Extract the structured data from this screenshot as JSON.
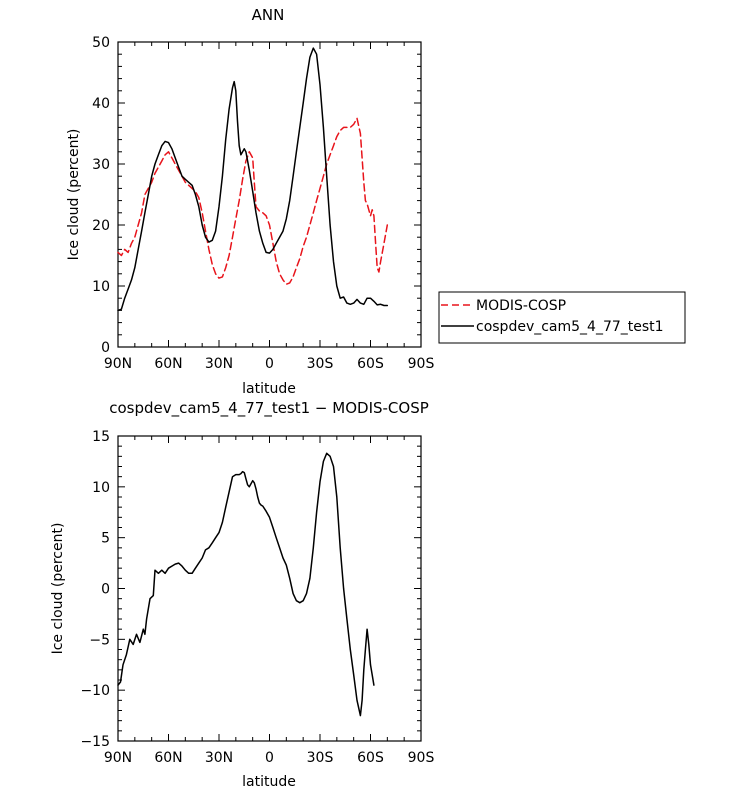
{
  "chart_data": [
    {
      "type": "line",
      "title": "ANN",
      "xlabel": "latitude",
      "ylabel": "Ice cloud (percent)",
      "xlim": [
        90,
        -90
      ],
      "ylim": [
        0,
        50
      ],
      "x_tick_values": [
        90,
        60,
        30,
        0,
        -30,
        -60,
        -90
      ],
      "x_tick_labels": [
        "90N",
        "60N",
        "30N",
        "0",
        "30S",
        "60S",
        "90S"
      ],
      "y_tick_values": [
        0,
        10,
        20,
        30,
        40,
        50
      ],
      "y_tick_labels": [
        "0",
        "10",
        "20",
        "30",
        "40",
        "50"
      ],
      "grid": false,
      "legend_position": "outside-right",
      "legend": [
        "MODIS-COSP",
        "cospdev_cam5_4_77_test1"
      ],
      "series": [
        {
          "name": "MODIS-COSP",
          "color": "#e8141b",
          "dash": "dashed",
          "points": [
            [
              90,
              15.5
            ],
            [
              88,
              15
            ],
            [
              86,
              16
            ],
            [
              84,
              15.5
            ],
            [
              82,
              17
            ],
            [
              80,
              18
            ],
            [
              78,
              20
            ],
            [
              76,
              22
            ],
            [
              74,
              25
            ],
            [
              72,
              26
            ],
            [
              70,
              27
            ],
            [
              68,
              28.5
            ],
            [
              66,
              29.5
            ],
            [
              64,
              30.5
            ],
            [
              62,
              31.5
            ],
            [
              60,
              32
            ],
            [
              58,
              31
            ],
            [
              56,
              30
            ],
            [
              54,
              29
            ],
            [
              52,
              28
            ],
            [
              50,
              27
            ],
            [
              48,
              26.5
            ],
            [
              46,
              26
            ],
            [
              44,
              25.5
            ],
            [
              42,
              24.5
            ],
            [
              40,
              22
            ],
            [
              38,
              19
            ],
            [
              36,
              16
            ],
            [
              34,
              13.5
            ],
            [
              32,
              12
            ],
            [
              30,
              11.3
            ],
            [
              28,
              11.5
            ],
            [
              26,
              13
            ],
            [
              24,
              15
            ],
            [
              22,
              18
            ],
            [
              20,
              21
            ],
            [
              18,
              24
            ],
            [
              16,
              27.5
            ],
            [
              14,
              30.5
            ],
            [
              12,
              32
            ],
            [
              10,
              31
            ],
            [
              9,
              27
            ],
            [
              8,
              23
            ],
            [
              6,
              22.3
            ],
            [
              4,
              22
            ],
            [
              2,
              21.5
            ],
            [
              0,
              20
            ],
            [
              -2,
              17
            ],
            [
              -4,
              14
            ],
            [
              -6,
              12
            ],
            [
              -8,
              11
            ],
            [
              -10,
              10.3
            ],
            [
              -12,
              10.5
            ],
            [
              -14,
              11.5
            ],
            [
              -16,
              13
            ],
            [
              -18,
              14.5
            ],
            [
              -20,
              16.5
            ],
            [
              -22,
              18
            ],
            [
              -24,
              20
            ],
            [
              -26,
              22
            ],
            [
              -28,
              24
            ],
            [
              -30,
              26
            ],
            [
              -32,
              28
            ],
            [
              -34,
              30
            ],
            [
              -36,
              31.5
            ],
            [
              -38,
              33
            ],
            [
              -40,
              34.5
            ],
            [
              -42,
              35.5
            ],
            [
              -44,
              36
            ],
            [
              -46,
              36
            ],
            [
              -48,
              36
            ],
            [
              -50,
              36.5
            ],
            [
              -52,
              37.5
            ],
            [
              -54,
              35
            ],
            [
              -55,
              31
            ],
            [
              -56,
              27
            ],
            [
              -57,
              24
            ],
            [
              -58,
              23.5
            ],
            [
              -59,
              22.5
            ],
            [
              -60,
              21.5
            ],
            [
              -61,
              22.5
            ],
            [
              -62,
              21.5
            ],
            [
              -63,
              17
            ],
            [
              -64,
              13
            ],
            [
              -65,
              12.3
            ],
            [
              -66,
              14
            ],
            [
              -68,
              17
            ],
            [
              -70,
              20
            ]
          ]
        },
        {
          "name": "cospdev_cam5_4_77_test1",
          "color": "#000000",
          "dash": "solid",
          "points": [
            [
              90,
              6
            ],
            [
              88,
              6.2
            ],
            [
              86,
              8
            ],
            [
              84,
              9.5
            ],
            [
              82,
              11
            ],
            [
              80,
              13
            ],
            [
              78,
              16
            ],
            [
              76,
              19
            ],
            [
              74,
              22
            ],
            [
              72,
              25
            ],
            [
              70,
              28
            ],
            [
              68,
              30
            ],
            [
              66,
              31.5
            ],
            [
              64,
              33
            ],
            [
              62,
              33.7
            ],
            [
              60,
              33.5
            ],
            [
              58,
              32.5
            ],
            [
              56,
              31
            ],
            [
              54,
              29.5
            ],
            [
              52,
              28
            ],
            [
              50,
              27.5
            ],
            [
              48,
              27
            ],
            [
              46,
              26.5
            ],
            [
              44,
              25
            ],
            [
              42,
              23
            ],
            [
              40,
              20
            ],
            [
              38,
              18
            ],
            [
              36,
              17.2
            ],
            [
              34,
              17.5
            ],
            [
              32,
              19
            ],
            [
              30,
              23
            ],
            [
              28,
              28
            ],
            [
              26,
              34
            ],
            [
              24,
              39
            ],
            [
              22,
              42.5
            ],
            [
              21,
              43.5
            ],
            [
              20,
              42
            ],
            [
              19,
              37
            ],
            [
              18,
              33
            ],
            [
              17,
              31.5
            ],
            [
              16,
              32
            ],
            [
              15,
              32.5
            ],
            [
              14,
              32
            ],
            [
              12,
              29
            ],
            [
              10,
              25.5
            ],
            [
              8,
              22
            ],
            [
              6,
              19
            ],
            [
              4,
              17
            ],
            [
              2,
              15.5
            ],
            [
              0,
              15.4
            ],
            [
              -2,
              16
            ],
            [
              -4,
              17
            ],
            [
              -6,
              18
            ],
            [
              -8,
              19
            ],
            [
              -10,
              21
            ],
            [
              -12,
              24
            ],
            [
              -14,
              28
            ],
            [
              -16,
              32
            ],
            [
              -18,
              36
            ],
            [
              -20,
              40
            ],
            [
              -22,
              44
            ],
            [
              -24,
              47.5
            ],
            [
              -26,
              49
            ],
            [
              -28,
              48
            ],
            [
              -30,
              43
            ],
            [
              -32,
              36
            ],
            [
              -34,
              28
            ],
            [
              -36,
              20
            ],
            [
              -38,
              14
            ],
            [
              -40,
              10
            ],
            [
              -42,
              8
            ],
            [
              -44,
              8.2
            ],
            [
              -46,
              7.2
            ],
            [
              -48,
              7
            ],
            [
              -50,
              7.2
            ],
            [
              -52,
              7.8
            ],
            [
              -54,
              7.2
            ],
            [
              -56,
              7
            ],
            [
              -58,
              8
            ],
            [
              -60,
              8
            ],
            [
              -62,
              7.5
            ],
            [
              -64,
              6.9
            ],
            [
              -66,
              7
            ],
            [
              -68,
              6.8
            ],
            [
              -70,
              6.8
            ]
          ]
        }
      ]
    },
    {
      "type": "line",
      "title": "cospdev_cam5_4_77_test1 − MODIS-COSP",
      "xlabel": "latitude",
      "ylabel": "Ice cloud (percent)",
      "xlim": [
        90,
        -90
      ],
      "ylim": [
        -15,
        15
      ],
      "x_tick_values": [
        90,
        60,
        30,
        0,
        -30,
        -60,
        -90
      ],
      "x_tick_labels": [
        "90N",
        "60N",
        "30N",
        "0",
        "30S",
        "60S",
        "90S"
      ],
      "y_tick_values": [
        -15,
        -10,
        -5,
        0,
        5,
        10,
        15
      ],
      "y_tick_labels": [
        "−15",
        "−10",
        "−5",
        "0",
        "5",
        "10",
        "15"
      ],
      "grid": false,
      "series": [
        {
          "color": "#000000",
          "dash": "solid",
          "points": [
            [
              90,
              -9.5
            ],
            [
              88.5,
              -9.2
            ],
            [
              87,
              -7.5
            ],
            [
              85,
              -6.5
            ],
            [
              83,
              -5
            ],
            [
              81,
              -5.5
            ],
            [
              79,
              -4.5
            ],
            [
              77,
              -5.3
            ],
            [
              75,
              -4
            ],
            [
              74,
              -4.5
            ],
            [
              73,
              -3
            ],
            [
              71,
              -1
            ],
            [
              69,
              -0.7
            ],
            [
              68,
              1.8
            ],
            [
              66,
              1.5
            ],
            [
              64,
              1.8
            ],
            [
              62,
              1.5
            ],
            [
              60,
              2
            ],
            [
              58,
              2.2
            ],
            [
              56,
              2.4
            ],
            [
              54,
              2.5
            ],
            [
              52,
              2.2
            ],
            [
              50,
              1.8
            ],
            [
              48,
              1.5
            ],
            [
              46,
              1.5
            ],
            [
              44,
              2
            ],
            [
              42,
              2.5
            ],
            [
              40,
              3
            ],
            [
              38,
              3.8
            ],
            [
              36,
              4
            ],
            [
              34,
              4.5
            ],
            [
              32,
              5
            ],
            [
              30,
              5.5
            ],
            [
              28,
              6.5
            ],
            [
              26,
              8
            ],
            [
              24,
              9.5
            ],
            [
              22,
              11
            ],
            [
              20,
              11.2
            ],
            [
              18,
              11.2
            ],
            [
              17,
              11.3
            ],
            [
              16,
              11.5
            ],
            [
              15,
              11.4
            ],
            [
              14,
              10.8
            ],
            [
              13,
              10.2
            ],
            [
              12,
              10
            ],
            [
              11,
              10.3
            ],
            [
              10,
              10.6
            ],
            [
              9,
              10.4
            ],
            [
              8,
              9.8
            ],
            [
              7,
              9
            ],
            [
              6,
              8.4
            ],
            [
              5,
              8.2
            ],
            [
              4,
              8.1
            ],
            [
              2,
              7.6
            ],
            [
              0,
              7
            ],
            [
              -2,
              6
            ],
            [
              -4,
              5
            ],
            [
              -6,
              4
            ],
            [
              -8,
              3
            ],
            [
              -10,
              2.3
            ],
            [
              -12,
              1
            ],
            [
              -14,
              -0.5
            ],
            [
              -16,
              -1.2
            ],
            [
              -18,
              -1.4
            ],
            [
              -20,
              -1.2
            ],
            [
              -22,
              -0.5
            ],
            [
              -24,
              1
            ],
            [
              -26,
              4
            ],
            [
              -28,
              7.5
            ],
            [
              -30,
              10.5
            ],
            [
              -32,
              12.5
            ],
            [
              -34,
              13.3
            ],
            [
              -36,
              13
            ],
            [
              -38,
              12
            ],
            [
              -40,
              9
            ],
            [
              -42,
              4
            ],
            [
              -44,
              0
            ],
            [
              -46,
              -3
            ],
            [
              -48,
              -6
            ],
            [
              -50,
              -8.5
            ],
            [
              -52,
              -11
            ],
            [
              -54,
              -12.5
            ],
            [
              -55,
              -11
            ],
            [
              -56,
              -8
            ],
            [
              -57,
              -6
            ],
            [
              -58,
              -4
            ],
            [
              -59,
              -5.5
            ],
            [
              -60,
              -7.5
            ],
            [
              -61,
              -8.5
            ],
            [
              -62,
              -9.5
            ]
          ]
        }
      ]
    }
  ]
}
